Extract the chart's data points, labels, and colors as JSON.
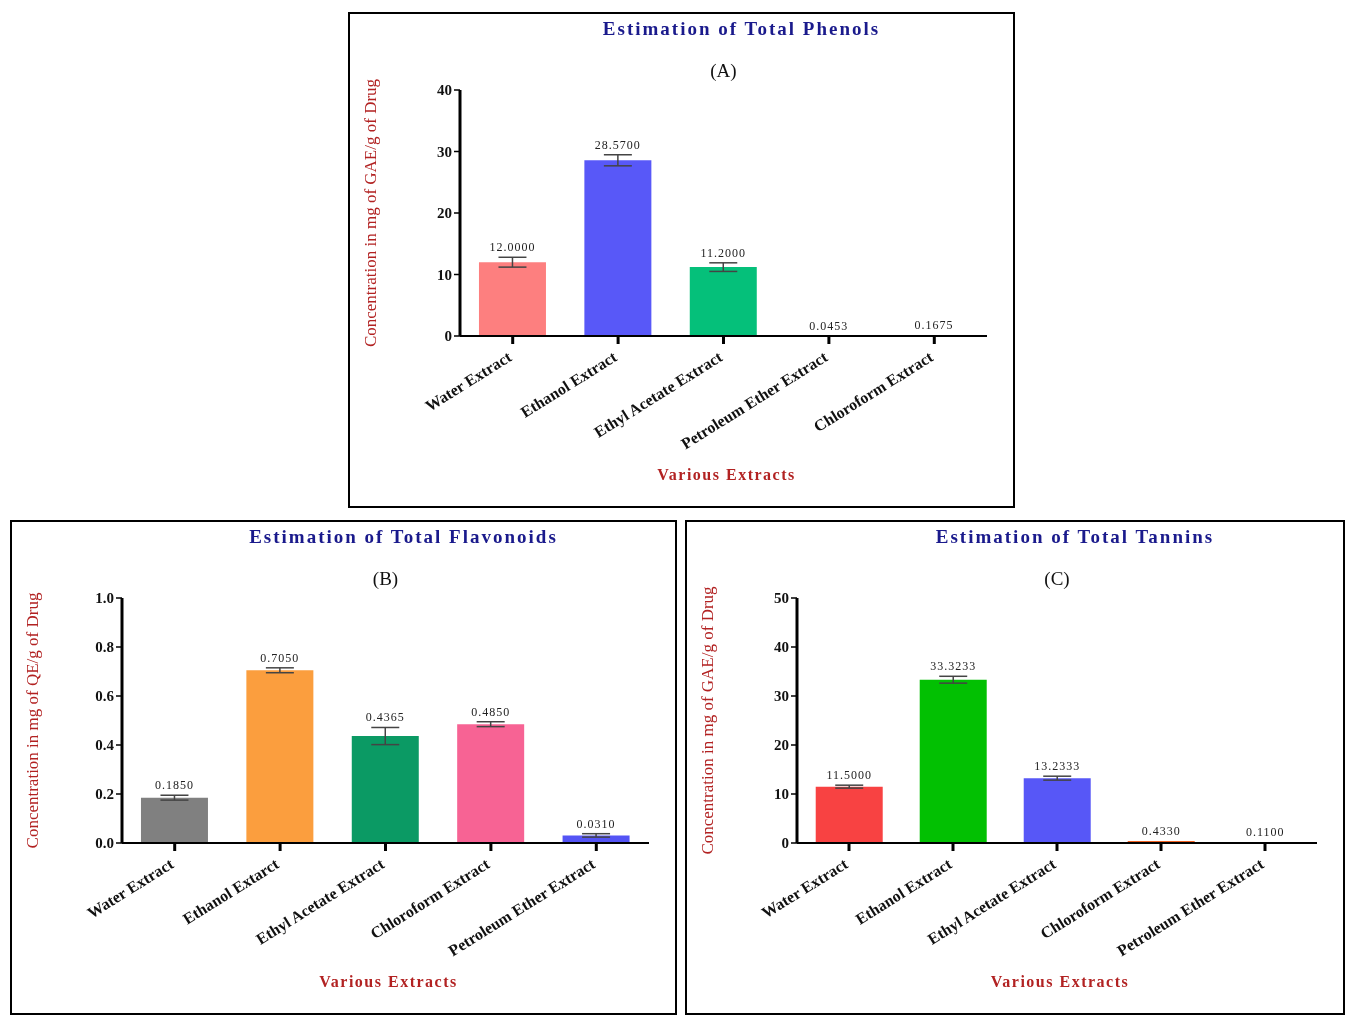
{
  "chart_data": [
    {
      "type": "bar",
      "title": "Estimation of Total Phenols",
      "xlabel": "Various Extracts",
      "ylabel": "Concentration in mg of GAE/g of Drug",
      "annotations": [
        "(A)"
      ],
      "categories": [
        "Water Extract",
        "Ethanol Extract",
        "Ethyl Acetate Extract",
        "Petroleum Ether Extract",
        "Chloroform Extract"
      ],
      "values": [
        12.0,
        28.57,
        11.2,
        0.0453,
        0.1675
      ],
      "errors": [
        0.8,
        0.9,
        0.7,
        null,
        null
      ],
      "value_labels": [
        "12.0000",
        "28.5700",
        "11.2000",
        "0.0453",
        "0.1675"
      ],
      "colors": [
        "#fd7f7f",
        "#5858f8",
        "#05c07a",
        "#f07878",
        "#f05050"
      ],
      "ylim": [
        0,
        40
      ],
      "yticks": [
        0,
        10,
        20,
        30,
        40
      ],
      "grid": false,
      "legend": false
    },
    {
      "type": "bar",
      "title": "Estimation of Total Flavonoids",
      "xlabel": "Various Extracts",
      "ylabel": "Concentration in mg of QE/g of Drug",
      "annotations": [
        "(B)"
      ],
      "categories": [
        "Water Extract",
        "Ethanol Extarct",
        "Ethyl Acetate Extract",
        "Chloroform Extract",
        "Petroleum Ether Extract"
      ],
      "values": [
        0.185,
        0.705,
        0.4365,
        0.485,
        0.031
      ],
      "errors": [
        0.01,
        0.01,
        0.035,
        0.01,
        0.007
      ],
      "value_labels": [
        "0.1850",
        "0.7050",
        "0.4365",
        "0.4850",
        "0.0310"
      ],
      "colors": [
        "#808080",
        "#fb9e3e",
        "#0b9a64",
        "#f76394",
        "#5454f5"
      ],
      "ylim": [
        0,
        1.0
      ],
      "yticks": [
        {
          "value": 0,
          "label": "0.0"
        },
        0.2,
        0.4,
        0.6,
        0.8,
        {
          "value": 1.0,
          "label": "1.0"
        }
      ],
      "grid": false,
      "legend": false
    },
    {
      "type": "bar",
      "title": "Estimation of Total Tannins",
      "xlabel": "Various Extracts",
      "ylabel": "Concentration in mg of GAE/g of Drug",
      "annotations": [
        "(C)"
      ],
      "categories": [
        "Water Extract",
        "Ethanol Extract",
        "Ethyl Acetate Extract",
        "Chloroform Extract",
        "Petroleum Ether Extract"
      ],
      "values": [
        11.5,
        33.3233,
        13.2333,
        0.433,
        0.11
      ],
      "errors": [
        0.3,
        0.7,
        0.4,
        null,
        null
      ],
      "value_labels": [
        "11.5000",
        "33.3233",
        "13.2333",
        "0.4330",
        "0.1100"
      ],
      "colors": [
        "#f84242",
        "#02c002",
        "#5757f7",
        "#f06020",
        "#f02020"
      ],
      "ylim": [
        0,
        50
      ],
      "yticks": [
        0,
        10,
        20,
        30,
        40,
        50
      ],
      "grid": false,
      "legend": false
    }
  ]
}
